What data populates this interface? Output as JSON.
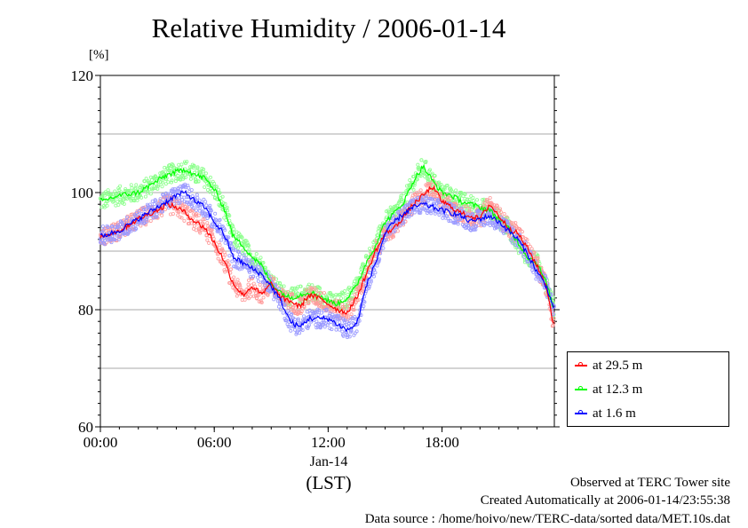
{
  "chart_data": {
    "type": "line",
    "title": "Relative Humidity / 2006-01-14",
    "yunit": "[%]",
    "ylim": [
      60,
      120
    ],
    "yticks": [
      60,
      80,
      100,
      120
    ],
    "gridlines_y": [
      70,
      80,
      90,
      100,
      110
    ],
    "xlim": [
      0,
      23.917
    ],
    "xticks": [
      {
        "x": 0,
        "label": "00:00"
      },
      {
        "x": 6,
        "label": "06:00"
      },
      {
        "x": 12,
        "label": "12:00"
      },
      {
        "x": 18,
        "label": "18:00"
      }
    ],
    "xlabel_date": "Jan-14",
    "xlabel": "(LST)",
    "legend_position": "right",
    "x": [
      0,
      1,
      2,
      3,
      3.5,
      4,
      4.5,
      5,
      5.5,
      6,
      6.5,
      7,
      7.5,
      8,
      8.5,
      9,
      9.5,
      10,
      10.5,
      11,
      11.5,
      12,
      12.5,
      13,
      13.5,
      14,
      14.5,
      15,
      15.5,
      16,
      16.5,
      17,
      17.5,
      18,
      18.5,
      19,
      19.5,
      20,
      20.5,
      21,
      21.5,
      22,
      22.5,
      23,
      23.5,
      23.9
    ],
    "series": [
      {
        "name": "at 29.5 m",
        "color": "#ff0000",
        "values": [
          92.5,
          93.5,
          95.5,
          97,
          98,
          97.5,
          96.5,
          95,
          94,
          91.5,
          88.5,
          84.5,
          82.5,
          84,
          82.5,
          84.5,
          82,
          81.5,
          80.5,
          82.5,
          82,
          81,
          80,
          79.5,
          82,
          86,
          90,
          93,
          94,
          96,
          98,
          99.5,
          101,
          98.5,
          97.5,
          96.5,
          96,
          95.5,
          98,
          96,
          94,
          93,
          90.5,
          87.5,
          84,
          77
        ]
      },
      {
        "name": "at 12.3 m",
        "color": "#00ff00",
        "values": [
          98.5,
          99.5,
          100,
          102,
          103,
          103.5,
          104,
          103,
          102.5,
          100.5,
          97.5,
          92.5,
          91,
          89,
          87.5,
          84.5,
          83,
          82,
          82.5,
          83,
          82.5,
          81.5,
          81,
          82,
          84,
          88,
          91,
          95,
          96.5,
          98.5,
          102,
          104.5,
          102,
          100,
          99.5,
          98.5,
          98,
          97.5,
          97,
          95.5,
          94,
          91.5,
          89,
          88,
          84.5,
          80
        ]
      },
      {
        "name": "at 1.6 m",
        "color": "#0000ff",
        "values": [
          92.5,
          93.5,
          95.5,
          97.5,
          98.5,
          99.5,
          100,
          98.5,
          97.5,
          95,
          93,
          89,
          88,
          87,
          86,
          84,
          81.5,
          78,
          77,
          78.5,
          78.5,
          78.5,
          77.5,
          76.5,
          77.5,
          84,
          88,
          93,
          95,
          96.5,
          97.5,
          98,
          97.5,
          97,
          96.5,
          96,
          95,
          95.5,
          96,
          95,
          93.5,
          92,
          89.5,
          86.5,
          84,
          80
        ]
      }
    ]
  },
  "footer": {
    "line1": "Observed at TERC Tower site",
    "line2": "Created Automatically at 2006-01-14/23:55:38",
    "line3": "Data source : /home/hoivo/new/TERC-data/sorted  data/MET.10s.dat"
  }
}
